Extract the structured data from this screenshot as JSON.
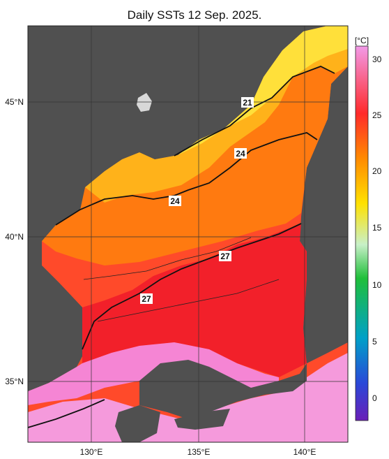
{
  "title": "Daily SSTs 12 Sep. 2025.",
  "map": {
    "lat_labels": [
      "45°N",
      "40°N",
      "35°N"
    ],
    "lon_labels": [
      "130°E",
      "135°E",
      "140°E"
    ],
    "contour_labels": [
      "21",
      "24",
      "24",
      "27",
      "27"
    ],
    "land_color": "#505050",
    "frame_color": "#222222"
  },
  "colorbar": {
    "unit": "[°C]",
    "ticks": [
      "30",
      "25",
      "20",
      "15",
      "10",
      "5",
      "0"
    ],
    "stops": [
      "#f29ae8",
      "#ff2a2a",
      "#ff8a00",
      "#ffe100",
      "#9ee69e",
      "#1fbf3a",
      "#00a0c8",
      "#2a48d8",
      "#6a1fb8"
    ]
  }
}
